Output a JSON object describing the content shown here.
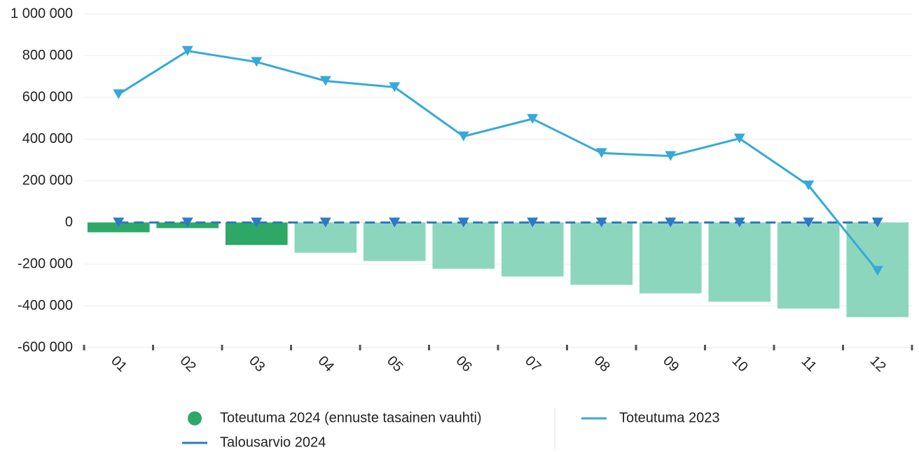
{
  "chart_data": {
    "type": "combo",
    "categories": [
      "01",
      "02",
      "03",
      "04",
      "05",
      "06",
      "07",
      "08",
      "09",
      "10",
      "11",
      "12"
    ],
    "ylim": [
      -600000,
      1000000
    ],
    "yticks": [
      {
        "value": -600000,
        "label": "-600 000"
      },
      {
        "value": -400000,
        "label": "-400 000"
      },
      {
        "value": -200000,
        "label": "-200 000"
      },
      0,
      {
        "value": 200000,
        "label": "200 000"
      },
      {
        "value": 400000,
        "label": "400 000"
      },
      {
        "value": 600000,
        "label": "600 000"
      },
      {
        "value": 800000,
        "label": "800 000"
      },
      {
        "value": 1000000,
        "label": "1 000 000"
      }
    ],
    "grid": true,
    "legend": "bottom",
    "series": [
      {
        "name": "Toteutuma 2024 (ennuste tasainen vauhti)",
        "kind": "bar",
        "color": "#2ea866",
        "colors": [
          "#2ea866",
          "#2ea866",
          "#2ea866",
          "#8dd6be",
          "#8dd6be",
          "#8dd6be",
          "#8dd6be",
          "#8dd6be",
          "#8dd6be",
          "#8dd6be",
          "#8dd6be",
          "#8dd6be"
        ],
        "values": [
          -47000,
          -27000,
          -108000,
          -145000,
          -185000,
          -222000,
          -259000,
          -299000,
          -340000,
          -380000,
          -413000,
          -454000
        ]
      },
      {
        "name": "Toteutuma 2023",
        "kind": "line",
        "color": "#36a9d8",
        "dashed": false,
        "values": [
          615000,
          823000,
          770000,
          679000,
          649000,
          413000,
          497000,
          333000,
          319000,
          403000,
          178000,
          -232000
        ]
      },
      {
        "name": "Talousarvio 2024",
        "kind": "line",
        "color": "#2e78c7",
        "dashed": true,
        "values": [
          0,
          0,
          0,
          0,
          0,
          0,
          0,
          0,
          0,
          0,
          0,
          0
        ]
      }
    ]
  }
}
